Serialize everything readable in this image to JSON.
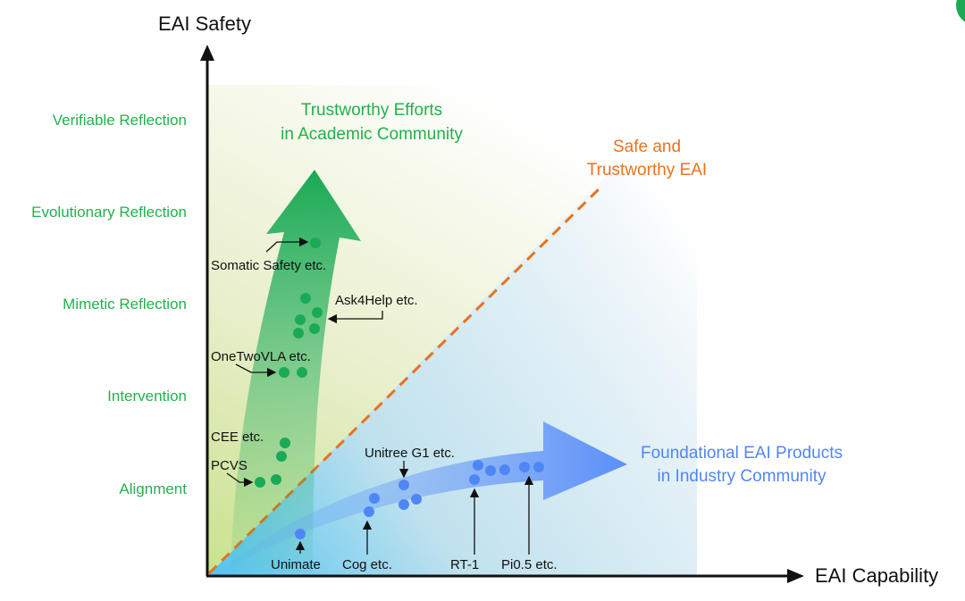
{
  "axes": {
    "y_label": "EAI Safety",
    "x_label": "EAI Capability"
  },
  "safety_levels": [
    "Verifiable Reflection",
    "Evolutionary Reflection",
    "Mimetic Reflection",
    "Intervention",
    "Alignment"
  ],
  "regions": {
    "academic": {
      "line1": "Trustworthy Efforts",
      "line2": "in Academic Community"
    },
    "industry": {
      "line1": "Foundational EAI Products",
      "line2": "in Industry Community"
    },
    "diagonal": {
      "line1": "Safe and",
      "line2": "Trustworthy EAI"
    }
  },
  "academic_annotations": [
    "Somatic Safety etc.",
    "Ask4Help etc.",
    "OneTwoVLA etc.",
    "CEE etc.",
    "PCVS"
  ],
  "industry_annotations": [
    "Unitree G1 etc.",
    "Unimate",
    "Cog etc.",
    "RT-1",
    "Pi0.5 etc."
  ],
  "colors": {
    "academic": "#1aaa55",
    "academic_text": "#22b14c",
    "industry": "#5b8ff9",
    "industry_text": "#4f86f7",
    "diagonal": "#e8731e",
    "axis": "#111111"
  }
}
